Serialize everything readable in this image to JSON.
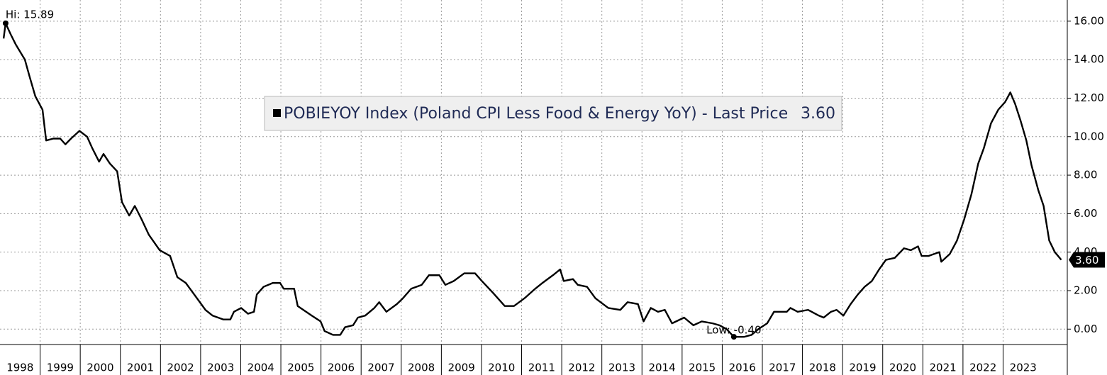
{
  "chart_data": {
    "type": "line",
    "series": [
      {
        "name": "POBIEYOY Index (Poland CPI Less Food & Energy YoY) - Last Price",
        "color": "#000000",
        "values": [
          15.1,
          15.89,
          15.3,
          14.8,
          14.0,
          13.1,
          12.1,
          11.4,
          9.8,
          9.9,
          9.9,
          9.6,
          9.9,
          10.3,
          10.0,
          9.4,
          8.7,
          9.1,
          8.6,
          8.2,
          6.6,
          5.9,
          6.4,
          5.7,
          4.9,
          4.1,
          3.8,
          2.7,
          2.4,
          2.0,
          1.0,
          0.7,
          0.5,
          0.5,
          0.9,
          1.1,
          0.8,
          0.9,
          1.8,
          2.2,
          2.4,
          2.4,
          2.1,
          2.1,
          1.2,
          0.7,
          0.4,
          -0.1,
          -0.3,
          -0.3,
          0.1,
          0.2,
          0.6,
          0.7,
          1.1,
          1.4,
          0.9,
          1.3,
          1.6,
          2.1,
          2.3,
          2.8,
          2.8,
          2.3,
          2.5,
          2.9,
          2.9,
          2.5,
          1.9,
          1.2,
          1.2,
          1.6,
          2.1,
          2.4,
          2.8,
          3.1,
          2.5,
          2.6,
          2.3,
          2.2,
          1.6,
          1.1,
          1.0,
          1.4,
          1.3,
          0.4,
          1.1,
          0.9,
          1.0,
          0.3,
          0.6,
          0.2,
          0.4,
          0.3,
          0.2,
          0.0,
          -0.4,
          -0.4,
          -0.3,
          0.0,
          0.3,
          0.9,
          0.9,
          1.1,
          0.9,
          1.0,
          0.7,
          0.6,
          0.9,
          1.0,
          0.7,
          1.3,
          1.8,
          2.2,
          2.5,
          3.1,
          3.6,
          3.7,
          4.2,
          4.1,
          4.3,
          3.8,
          3.8,
          4.0,
          3.5,
          3.9,
          4.6,
          5.7,
          7.0,
          8.6,
          9.4,
          10.7,
          11.4,
          11.8,
          12.3,
          11.7,
          10.8,
          9.8,
          8.5,
          7.2,
          6.4,
          4.6,
          4.0,
          3.6
        ]
      }
    ],
    "x": [
      1998.09,
      1998.14,
      1998.27,
      1998.39,
      1998.62,
      1998.74,
      1998.88,
      1999.06,
      1999.15,
      1999.33,
      1999.5,
      1999.63,
      1999.77,
      1999.98,
      2000.17,
      2000.3,
      2000.47,
      2000.58,
      2000.74,
      2000.92,
      2001.04,
      2001.22,
      2001.36,
      2001.53,
      2001.71,
      2001.98,
      2002.24,
      2002.42,
      2002.63,
      2002.77,
      2003.12,
      2003.3,
      2003.57,
      2003.74,
      2003.83,
      2004.01,
      2004.18,
      2004.33,
      2004.4,
      2004.57,
      2004.8,
      2004.98,
      2005.07,
      2005.33,
      2005.42,
      2005.77,
      2005.99,
      2006.09,
      2006.3,
      2006.48,
      2006.6,
      2006.8,
      2006.92,
      2007.1,
      2007.33,
      2007.45,
      2007.63,
      2007.89,
      2008.04,
      2008.25,
      2008.51,
      2008.69,
      2008.95,
      2009.1,
      2009.31,
      2009.57,
      2009.84,
      2010.01,
      2010.28,
      2010.58,
      2010.81,
      2011.07,
      2011.34,
      2011.52,
      2011.78,
      2011.96,
      2012.05,
      2012.28,
      2012.4,
      2012.63,
      2012.84,
      2013.16,
      2013.46,
      2013.64,
      2013.9,
      2014.04,
      2014.22,
      2014.4,
      2014.57,
      2014.75,
      2015.05,
      2015.28,
      2015.49,
      2015.76,
      2015.93,
      2016.11,
      2016.29,
      2016.55,
      2016.73,
      2016.9,
      2017.12,
      2017.29,
      2017.61,
      2017.7,
      2017.88,
      2018.14,
      2018.41,
      2018.53,
      2018.71,
      2018.85,
      2019.02,
      2019.2,
      2019.38,
      2019.55,
      2019.73,
      2019.91,
      2020.08,
      2020.3,
      2020.53,
      2020.7,
      2020.88,
      2020.97,
      2021.14,
      2021.41,
      2021.46,
      2021.67,
      2021.85,
      2022.03,
      2022.21,
      2022.38,
      2022.52,
      2022.7,
      2022.88,
      2023.05,
      2023.18,
      2023.3,
      2023.44,
      2023.58,
      2023.71,
      2023.88,
      2024.01,
      2024.15,
      2024.29,
      2024.45
    ],
    "xlim": [
      1998,
      2024.6
    ],
    "xticks": [
      1998,
      1999,
      2000,
      2001,
      2002,
      2003,
      2004,
      2005,
      2006,
      2007,
      2008,
      2009,
      2010,
      2011,
      2012,
      2013,
      2014,
      2015,
      2016,
      2017,
      2018,
      2019,
      2020,
      2021,
      2022,
      2023
    ],
    "ylim": [
      -0.8,
      17.1
    ],
    "yticks": [
      {
        "value": 0,
        "label": "0.00"
      },
      {
        "value": 2,
        "label": "2.00"
      },
      {
        "value": 4,
        "label": "4.00"
      },
      {
        "value": 6,
        "label": "6.00"
      },
      {
        "value": 8,
        "label": "8.00"
      },
      {
        "value": 10,
        "label": "10.00"
      },
      {
        "value": 12,
        "label": "12.00"
      },
      {
        "value": 14,
        "label": "14.00"
      },
      {
        "value": 16,
        "label": "16.00"
      }
    ],
    "grid": true,
    "annotations": [
      {
        "label": "Hi: 15.89",
        "x": 1998.14,
        "value": 15.89
      },
      {
        "label": "Low: -0.40",
        "x": 2016.29,
        "value": -0.4
      }
    ],
    "last_value": {
      "value": 3.6,
      "label": "3.60"
    }
  }
}
